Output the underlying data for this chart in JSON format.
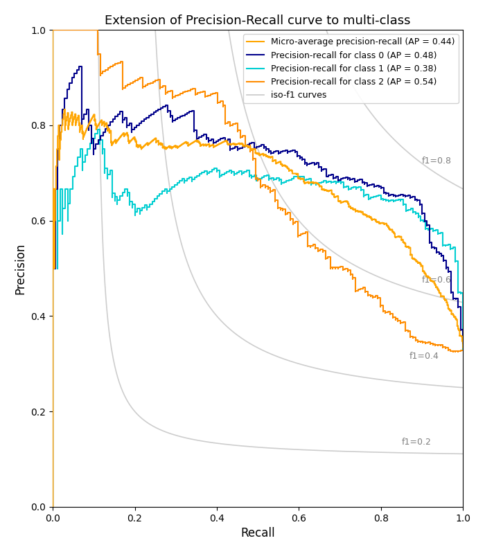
{
  "title": "Extension of Precision-Recall curve to multi-class",
  "xlabel": "Recall",
  "ylabel": "Precision",
  "xlim": [
    0.0,
    1.0
  ],
  "ylim": [
    0.0,
    1.0
  ],
  "colors": {
    "micro": "#FFA500",
    "class0": "#00008B",
    "class1": "#00CED1",
    "class2": "#FF8C00"
  },
  "legend_labels": {
    "micro": "Micro-average precision-recall (AP = 0.44)",
    "class0": "Precision-recall for class 0 (AP = 0.48)",
    "class1": "Precision-recall for class 1 (AP = 0.38)",
    "class2": "Precision-recall for class 2 (AP = 0.54)",
    "iso": "iso-f1 curves"
  },
  "iso_f1_values": [
    0.2,
    0.4,
    0.6,
    0.8
  ],
  "iso_f1_color": "#c8c8c8",
  "figsize": [
    7.0,
    8.0
  ],
  "dpi": 100
}
